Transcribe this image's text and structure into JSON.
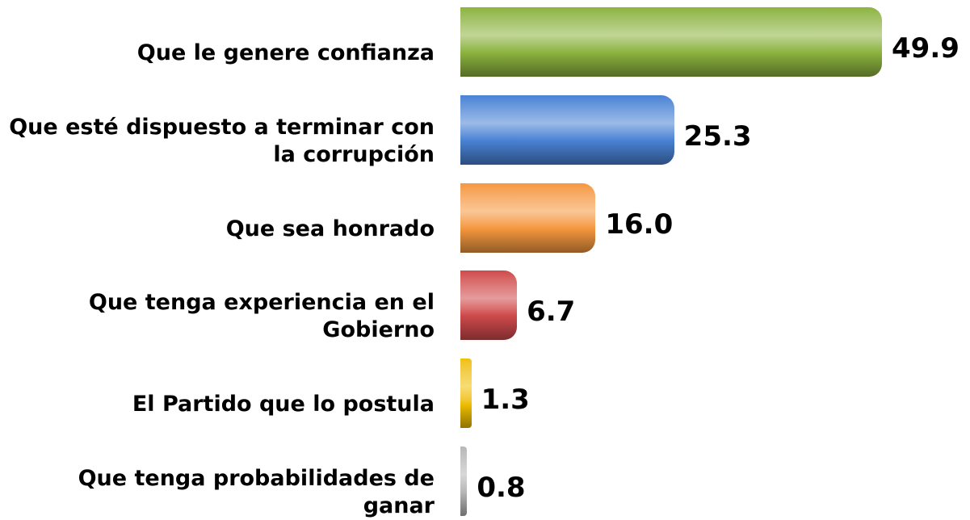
{
  "chart_data": {
    "type": "bar",
    "orientation": "horizontal",
    "categories": [
      "Que le genere confianza",
      "Que esté dispuesto a terminar con la corrupción",
      "Que sea honrado",
      "Que tenga experiencia en el Gobierno",
      "El Partido que lo postula",
      "Que tenga probabilidades de ganar"
    ],
    "values": [
      49.9,
      25.3,
      16.0,
      6.7,
      1.3,
      0.8
    ],
    "value_labels": [
      "49.9",
      "25.3",
      "16.0",
      "6.7",
      "1.3",
      "0.8"
    ],
    "colors": [
      "#8db33f",
      "#4a82d4",
      "#f5983f",
      "#cf4a4c",
      "#f0c000",
      "#b8b8b8"
    ]
  }
}
